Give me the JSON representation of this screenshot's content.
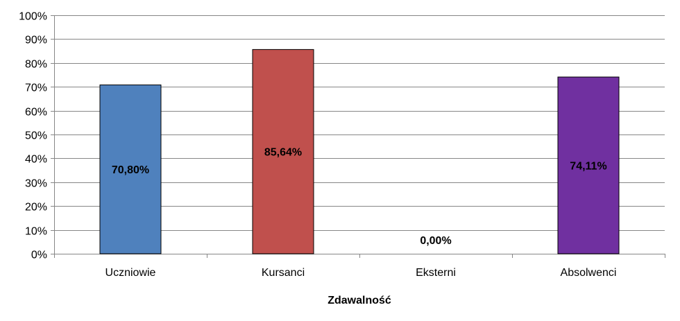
{
  "chart_data": {
    "type": "bar",
    "categories": [
      "Uczniowie",
      "Kursanci",
      "Eksterni",
      "Absolwenci"
    ],
    "values": [
      70.8,
      85.64,
      0.0,
      74.11
    ],
    "data_labels": [
      "70,80%",
      "85,64%",
      "0,00%",
      "74,11%"
    ],
    "colors": [
      "#4f81bd",
      "#c0504d",
      "#9bbb59",
      "#7030a0"
    ],
    "xlabel": "Zdawalność",
    "ylabel": "",
    "ylim": [
      0,
      100
    ],
    "yticks": [
      0,
      10,
      20,
      30,
      40,
      50,
      60,
      70,
      80,
      90,
      100
    ],
    "ytick_labels": [
      "0%",
      "10%",
      "20%",
      "30%",
      "40%",
      "50%",
      "60%",
      "70%",
      "80%",
      "90%",
      "100%"
    ],
    "grid": true,
    "legend": "none"
  }
}
